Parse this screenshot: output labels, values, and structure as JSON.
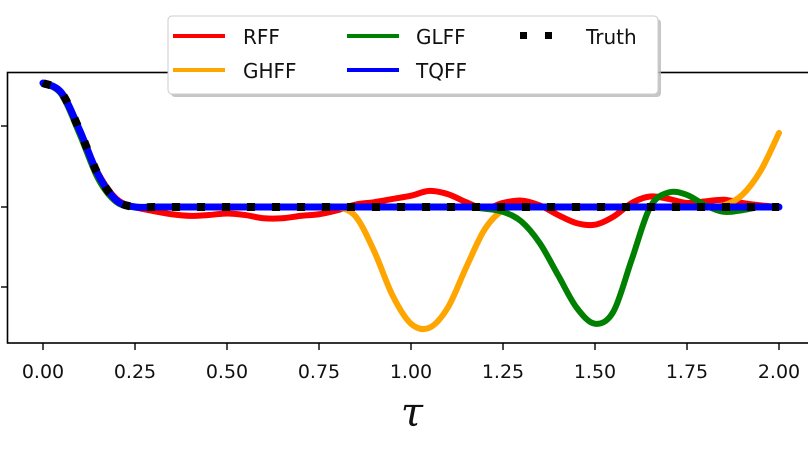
{
  "chart_data": {
    "type": "line",
    "title": "",
    "xlabel": "τ",
    "ylabel": "",
    "xlim": [
      -0.1,
      2.08
    ],
    "ylim": [
      -1.7,
      1.65
    ],
    "xticks": [
      "0.00",
      "0.25",
      "0.50",
      "0.75",
      "1.00",
      "1.25",
      "1.50",
      "1.75",
      "2.00"
    ],
    "yticks_visible_labels": false,
    "yticks": [
      1,
      0,
      -1
    ],
    "grid": false,
    "legend_position": "upper center (outside top, overlapping axes)",
    "legend_ncol": 3,
    "x": [
      0.0,
      0.05,
      0.1,
      0.15,
      0.2,
      0.25,
      0.3,
      0.35,
      0.4,
      0.45,
      0.5,
      0.55,
      0.6,
      0.65,
      0.7,
      0.75,
      0.8,
      0.85,
      0.9,
      0.95,
      1.0,
      1.05,
      1.1,
      1.15,
      1.2,
      1.25,
      1.3,
      1.35,
      1.4,
      1.45,
      1.5,
      1.55,
      1.6,
      1.65,
      1.7,
      1.75,
      1.8,
      1.85,
      1.9,
      1.95,
      2.0
    ],
    "series": [
      {
        "name": "RFF",
        "color": "#ff0000",
        "style": "solid",
        "values": [
          1.54,
          1.42,
          0.95,
          0.42,
          0.1,
          0.0,
          -0.05,
          -0.09,
          -0.11,
          -0.1,
          -0.08,
          -0.1,
          -0.14,
          -0.14,
          -0.11,
          -0.09,
          -0.04,
          0.03,
          0.06,
          0.1,
          0.14,
          0.2,
          0.16,
          0.06,
          -0.02,
          0.05,
          0.08,
          0.02,
          -0.1,
          -0.2,
          -0.22,
          -0.12,
          0.05,
          0.13,
          0.1,
          0.05,
          0.07,
          0.09,
          0.05,
          0.02,
          0.0
        ]
      },
      {
        "name": "GHFF",
        "color": "#ffa500",
        "style": "solid",
        "values": [
          1.54,
          1.4,
          0.9,
          0.35,
          0.06,
          0.0,
          0.0,
          0.0,
          0.0,
          0.0,
          0.0,
          0.0,
          0.0,
          0.0,
          0.0,
          0.0,
          0.0,
          -0.12,
          -0.55,
          -1.1,
          -1.45,
          -1.5,
          -1.25,
          -0.75,
          -0.28,
          -0.04,
          0.0,
          0.0,
          0.0,
          0.0,
          0.0,
          0.0,
          0.0,
          0.0,
          0.0,
          0.0,
          0.0,
          0.02,
          0.15,
          0.45,
          0.92
        ]
      },
      {
        "name": "GLFF",
        "color": "#008000",
        "style": "solid",
        "values": [
          1.54,
          1.4,
          0.9,
          0.35,
          0.06,
          0.0,
          0.0,
          0.0,
          0.0,
          0.0,
          0.0,
          0.0,
          0.0,
          0.0,
          0.0,
          0.0,
          0.0,
          0.0,
          0.0,
          0.0,
          0.0,
          0.0,
          0.0,
          0.0,
          -0.02,
          -0.06,
          -0.18,
          -0.45,
          -0.85,
          -1.25,
          -1.45,
          -1.3,
          -0.65,
          0.0,
          0.18,
          0.15,
          0.02,
          -0.06,
          -0.04,
          0.0,
          0.0
        ]
      },
      {
        "name": "TQFF",
        "color": "#0000ff",
        "style": "solid",
        "values": [
          1.54,
          1.42,
          0.95,
          0.4,
          0.08,
          0.0,
          0.0,
          0.0,
          0.0,
          0.0,
          0.0,
          0.0,
          0.0,
          0.0,
          0.0,
          0.0,
          0.0,
          0.0,
          0.0,
          0.0,
          0.0,
          0.0,
          0.0,
          0.0,
          0.0,
          0.0,
          0.0,
          0.0,
          0.0,
          0.0,
          0.0,
          0.0,
          0.0,
          0.0,
          0.0,
          0.0,
          0.0,
          0.0,
          0.0,
          0.0,
          0.0
        ]
      },
      {
        "name": "Truth",
        "color": "#000000",
        "style": "dotted (square markers)",
        "values": [
          1.54,
          1.42,
          0.95,
          0.4,
          0.08,
          0.0,
          0.0,
          0.0,
          0.0,
          0.0,
          0.0,
          0.0,
          0.0,
          0.0,
          0.0,
          0.0,
          0.0,
          0.0,
          0.0,
          0.0,
          0.0,
          0.0,
          0.0,
          0.0,
          0.0,
          0.0,
          0.0,
          0.0,
          0.0,
          0.0,
          0.0,
          0.0,
          0.0,
          0.0,
          0.0,
          0.0,
          0.0,
          0.0,
          0.0,
          0.0,
          0.0
        ]
      }
    ]
  },
  "legend": {
    "items": [
      {
        "label": "RFF",
        "color": "#ff0000"
      },
      {
        "label": "GHFF",
        "color": "#ffa500"
      },
      {
        "label": "GLFF",
        "color": "#008000"
      },
      {
        "label": "TQFF",
        "color": "#0000ff"
      },
      {
        "label": "Truth",
        "color": "#000000"
      }
    ]
  },
  "axes": {
    "xlabel": "τ",
    "xtick_labels": [
      "0.00",
      "0.25",
      "0.50",
      "0.75",
      "1.00",
      "1.25",
      "1.50",
      "1.75",
      "2.00"
    ]
  }
}
